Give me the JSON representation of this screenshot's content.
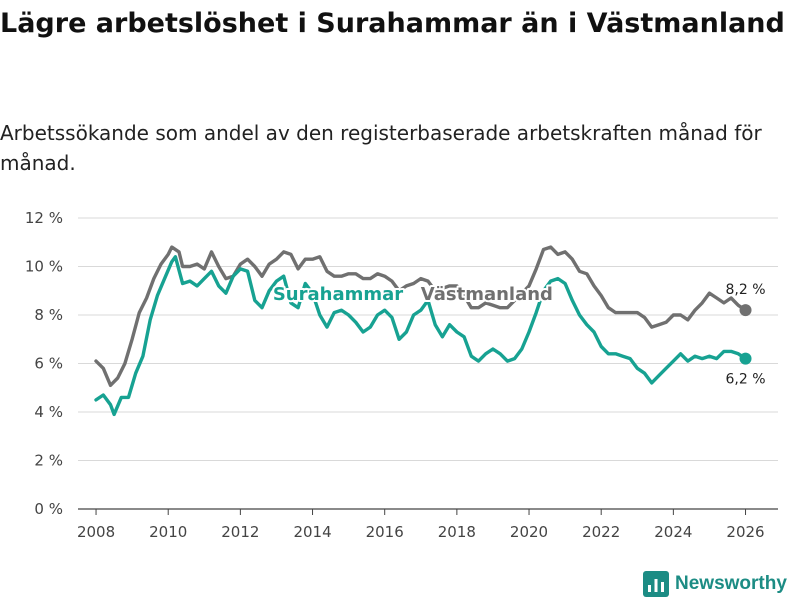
{
  "header": {
    "title": "Lägre arbetslöshet i Surahammar än i Västmanland",
    "subtitle": "Arbetssökande som andel av den registerbaserade arbetskraften månad för månad."
  },
  "brand": {
    "name": "Newsworthy",
    "color": "#1c8c84"
  },
  "colors": {
    "surahammar": "#17a292",
    "vastmanland": "#707070",
    "grid": "#d9d9d9",
    "axis": "#444444"
  },
  "chart_data": {
    "type": "line",
    "title": "Lägre arbetslöshet i Surahammar än i Västmanland",
    "xlabel": "",
    "ylabel": "",
    "xlim": [
      2007.5,
      2026.9
    ],
    "ylim": [
      0,
      12
    ],
    "grid": true,
    "x_ticks": [
      {
        "value": 2008,
        "label": "2008"
      },
      {
        "value": 2010,
        "label": "2010"
      },
      {
        "value": 2012,
        "label": "2012"
      },
      {
        "value": 2014,
        "label": "2014"
      },
      {
        "value": 2016,
        "label": "2016"
      },
      {
        "value": 2018,
        "label": "2018"
      },
      {
        "value": 2020,
        "label": "2020"
      },
      {
        "value": 2022,
        "label": "2022"
      },
      {
        "value": 2024,
        "label": "2024"
      },
      {
        "value": 2026,
        "label": "2026"
      }
    ],
    "y_ticks": [
      {
        "value": 0,
        "label": "0 %"
      },
      {
        "value": 2,
        "label": "2 %"
      },
      {
        "value": 4,
        "label": "4 %"
      },
      {
        "value": 6,
        "label": "6 %"
      },
      {
        "value": 8,
        "label": "8 %"
      },
      {
        "value": 10,
        "label": "10 %"
      },
      {
        "value": 12,
        "label": "12 %"
      }
    ],
    "series": [
      {
        "name": "Västmanland",
        "label": "Västmanland",
        "color": "#707070",
        "end_label": "8,2 %",
        "points": [
          [
            2008.0,
            6.1
          ],
          [
            2008.2,
            5.8
          ],
          [
            2008.4,
            5.1
          ],
          [
            2008.6,
            5.4
          ],
          [
            2008.8,
            6.0
          ],
          [
            2009.0,
            7.0
          ],
          [
            2009.2,
            8.1
          ],
          [
            2009.4,
            8.7
          ],
          [
            2009.6,
            9.5
          ],
          [
            2009.8,
            10.1
          ],
          [
            2010.0,
            10.5
          ],
          [
            2010.1,
            10.8
          ],
          [
            2010.3,
            10.6
          ],
          [
            2010.4,
            10.0
          ],
          [
            2010.6,
            10.0
          ],
          [
            2010.8,
            10.1
          ],
          [
            2011.0,
            9.9
          ],
          [
            2011.2,
            10.6
          ],
          [
            2011.4,
            10.0
          ],
          [
            2011.6,
            9.5
          ],
          [
            2011.8,
            9.6
          ],
          [
            2012.0,
            10.1
          ],
          [
            2012.2,
            10.3
          ],
          [
            2012.4,
            10.0
          ],
          [
            2012.6,
            9.6
          ],
          [
            2012.8,
            10.1
          ],
          [
            2013.0,
            10.3
          ],
          [
            2013.2,
            10.6
          ],
          [
            2013.4,
            10.5
          ],
          [
            2013.6,
            9.9
          ],
          [
            2013.8,
            10.3
          ],
          [
            2014.0,
            10.3
          ],
          [
            2014.2,
            10.4
          ],
          [
            2014.4,
            9.8
          ],
          [
            2014.6,
            9.6
          ],
          [
            2014.8,
            9.6
          ],
          [
            2015.0,
            9.7
          ],
          [
            2015.2,
            9.7
          ],
          [
            2015.4,
            9.5
          ],
          [
            2015.6,
            9.5
          ],
          [
            2015.8,
            9.7
          ],
          [
            2016.0,
            9.6
          ],
          [
            2016.2,
            9.4
          ],
          [
            2016.4,
            9.0
          ],
          [
            2016.6,
            9.2
          ],
          [
            2016.8,
            9.3
          ],
          [
            2017.0,
            9.5
          ],
          [
            2017.2,
            9.4
          ],
          [
            2017.4,
            9.0
          ],
          [
            2017.6,
            9.1
          ],
          [
            2017.8,
            9.2
          ],
          [
            2018.0,
            9.2
          ],
          [
            2018.2,
            8.8
          ],
          [
            2018.4,
            8.3
          ],
          [
            2018.6,
            8.3
          ],
          [
            2018.8,
            8.5
          ],
          [
            2019.0,
            8.4
          ],
          [
            2019.2,
            8.3
          ],
          [
            2019.4,
            8.3
          ],
          [
            2019.6,
            8.6
          ],
          [
            2019.8,
            8.9
          ],
          [
            2020.0,
            9.2
          ],
          [
            2020.2,
            9.9
          ],
          [
            2020.4,
            10.7
          ],
          [
            2020.6,
            10.8
          ],
          [
            2020.8,
            10.5
          ],
          [
            2021.0,
            10.6
          ],
          [
            2021.2,
            10.3
          ],
          [
            2021.4,
            9.8
          ],
          [
            2021.6,
            9.7
          ],
          [
            2021.8,
            9.2
          ],
          [
            2022.0,
            8.8
          ],
          [
            2022.2,
            8.3
          ],
          [
            2022.4,
            8.1
          ],
          [
            2022.6,
            8.1
          ],
          [
            2022.8,
            8.1
          ],
          [
            2023.0,
            8.1
          ],
          [
            2023.2,
            7.9
          ],
          [
            2023.4,
            7.5
          ],
          [
            2023.6,
            7.6
          ],
          [
            2023.8,
            7.7
          ],
          [
            2024.0,
            8.0
          ],
          [
            2024.2,
            8.0
          ],
          [
            2024.4,
            7.8
          ],
          [
            2024.6,
            8.2
          ],
          [
            2024.8,
            8.5
          ],
          [
            2025.0,
            8.9
          ],
          [
            2025.2,
            8.7
          ],
          [
            2025.4,
            8.5
          ],
          [
            2025.6,
            8.7
          ],
          [
            2025.8,
            8.4
          ],
          [
            2026.0,
            8.2
          ]
        ]
      },
      {
        "name": "Surahammar",
        "label": "Surahammar",
        "color": "#17a292",
        "end_label": "6,2 %",
        "points": [
          [
            2008.0,
            4.5
          ],
          [
            2008.2,
            4.7
          ],
          [
            2008.4,
            4.3
          ],
          [
            2008.5,
            3.9
          ],
          [
            2008.7,
            4.6
          ],
          [
            2008.9,
            4.6
          ],
          [
            2009.1,
            5.6
          ],
          [
            2009.3,
            6.3
          ],
          [
            2009.5,
            7.8
          ],
          [
            2009.7,
            8.8
          ],
          [
            2009.9,
            9.5
          ],
          [
            2010.1,
            10.2
          ],
          [
            2010.2,
            10.4
          ],
          [
            2010.4,
            9.3
          ],
          [
            2010.6,
            9.4
          ],
          [
            2010.8,
            9.2
          ],
          [
            2011.0,
            9.5
          ],
          [
            2011.2,
            9.8
          ],
          [
            2011.4,
            9.2
          ],
          [
            2011.6,
            8.9
          ],
          [
            2011.8,
            9.6
          ],
          [
            2012.0,
            9.9
          ],
          [
            2012.2,
            9.8
          ],
          [
            2012.4,
            8.6
          ],
          [
            2012.6,
            8.3
          ],
          [
            2012.8,
            9.0
          ],
          [
            2013.0,
            9.4
          ],
          [
            2013.2,
            9.6
          ],
          [
            2013.4,
            8.5
          ],
          [
            2013.6,
            8.3
          ],
          [
            2013.8,
            9.3
          ],
          [
            2014.0,
            8.9
          ],
          [
            2014.2,
            8.0
          ],
          [
            2014.4,
            7.5
          ],
          [
            2014.6,
            8.1
          ],
          [
            2014.8,
            8.2
          ],
          [
            2015.0,
            8.0
          ],
          [
            2015.2,
            7.7
          ],
          [
            2015.4,
            7.3
          ],
          [
            2015.6,
            7.5
          ],
          [
            2015.8,
            8.0
          ],
          [
            2016.0,
            8.2
          ],
          [
            2016.2,
            7.9
          ],
          [
            2016.4,
            7.0
          ],
          [
            2016.6,
            7.3
          ],
          [
            2016.8,
            8.0
          ],
          [
            2017.0,
            8.2
          ],
          [
            2017.2,
            8.6
          ],
          [
            2017.4,
            7.6
          ],
          [
            2017.6,
            7.1
          ],
          [
            2017.8,
            7.6
          ],
          [
            2018.0,
            7.3
          ],
          [
            2018.2,
            7.1
          ],
          [
            2018.4,
            6.3
          ],
          [
            2018.6,
            6.1
          ],
          [
            2018.8,
            6.4
          ],
          [
            2019.0,
            6.6
          ],
          [
            2019.2,
            6.4
          ],
          [
            2019.4,
            6.1
          ],
          [
            2019.6,
            6.2
          ],
          [
            2019.8,
            6.6
          ],
          [
            2020.0,
            7.3
          ],
          [
            2020.2,
            8.1
          ],
          [
            2020.4,
            9.0
          ],
          [
            2020.6,
            9.4
          ],
          [
            2020.8,
            9.5
          ],
          [
            2021.0,
            9.3
          ],
          [
            2021.2,
            8.6
          ],
          [
            2021.4,
            8.0
          ],
          [
            2021.6,
            7.6
          ],
          [
            2021.8,
            7.3
          ],
          [
            2022.0,
            6.7
          ],
          [
            2022.2,
            6.4
          ],
          [
            2022.4,
            6.4
          ],
          [
            2022.6,
            6.3
          ],
          [
            2022.8,
            6.2
          ],
          [
            2023.0,
            5.8
          ],
          [
            2023.2,
            5.6
          ],
          [
            2023.4,
            5.2
          ],
          [
            2023.6,
            5.5
          ],
          [
            2023.8,
            5.8
          ],
          [
            2024.0,
            6.1
          ],
          [
            2024.2,
            6.4
          ],
          [
            2024.4,
            6.1
          ],
          [
            2024.6,
            6.3
          ],
          [
            2024.8,
            6.2
          ],
          [
            2025.0,
            6.3
          ],
          [
            2025.2,
            6.2
          ],
          [
            2025.4,
            6.5
          ],
          [
            2025.6,
            6.5
          ],
          [
            2025.8,
            6.4
          ],
          [
            2026.0,
            6.2
          ]
        ]
      }
    ]
  }
}
